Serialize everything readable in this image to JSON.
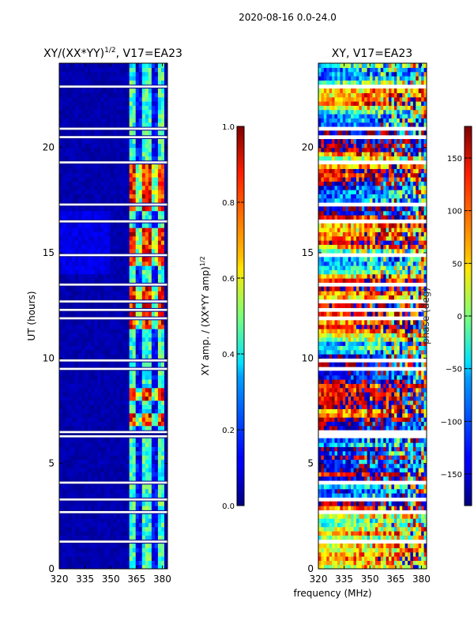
{
  "figure_title": "2020-08-16 0.0-24.0",
  "shared_xlabel": "frequency (MHz)",
  "chart_data": [
    {
      "type": "heatmap",
      "title_main": "XY/(XX*YY)",
      "title_sup": "1/2",
      "title_rest": ", V17=EA23",
      "xlabel": "",
      "ylabel": "UT (hours)",
      "xlim": [
        320,
        383
      ],
      "ylim": [
        0,
        24
      ],
      "xticks": [
        320,
        335,
        350,
        365,
        380
      ],
      "yticks": [
        0,
        5,
        10,
        15,
        20
      ],
      "colorbar": {
        "label_main": "XY amp. / (XX*YY amp)",
        "label_sup": "1/2",
        "range": [
          0.0,
          1.0
        ],
        "ticks": [
          "0.0",
          "0.2",
          "0.4",
          "0.6",
          "0.8",
          "1.0"
        ],
        "tick_values": [
          0.0,
          0.2,
          0.4,
          0.6,
          0.8,
          1.0
        ]
      },
      "active_band_mhz": [
        361,
        381
      ],
      "bright_hours": [
        [
          6.8,
          7.3
        ],
        [
          8.0,
          8.5
        ],
        [
          11.5,
          13.3
        ],
        [
          14.5,
          16.2
        ],
        [
          17.0,
          19.4
        ]
      ]
    },
    {
      "type": "heatmap",
      "title": "XY, V17=EA23",
      "xlabel": "",
      "ylabel": "",
      "xlim": [
        320,
        383
      ],
      "ylim": [
        0,
        24
      ],
      "xticks": [
        320,
        335,
        350,
        365,
        380
      ],
      "yticks": [
        0,
        5,
        10,
        15,
        20
      ],
      "colorbar": {
        "label": "phase (deg)",
        "range": [
          -180,
          180
        ],
        "ticks": [
          "−150",
          "−100",
          "−50",
          "0",
          "50",
          "100",
          "150"
        ],
        "tick_values": [
          -150,
          -100,
          -50,
          0,
          50,
          100,
          150
        ]
      }
    }
  ]
}
